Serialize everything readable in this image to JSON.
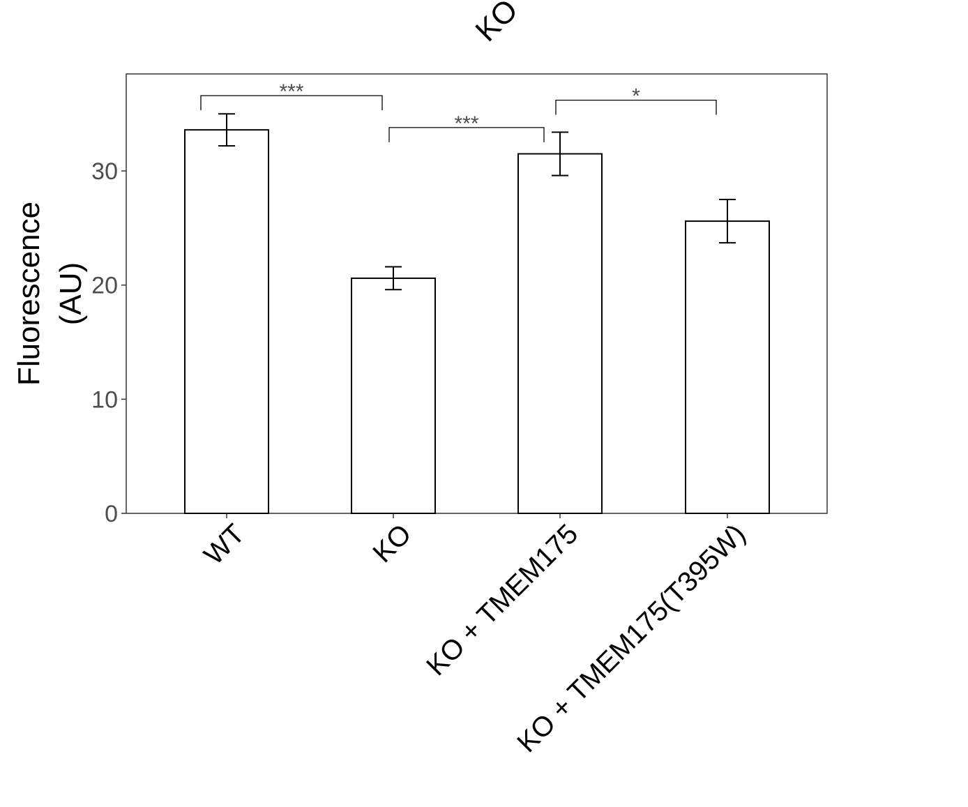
{
  "chart_data": {
    "type": "bar",
    "title": "KO",
    "xlabel": "",
    "ylabel_lines": [
      "Fluorescence",
      "(AU)"
    ],
    "categories": [
      "WT",
      "KO",
      "KO + TMEM175",
      "KO + TMEM175(T395W)"
    ],
    "values": [
      33.6,
      20.6,
      31.5,
      25.6
    ],
    "errors": [
      1.4,
      1.0,
      1.9,
      1.9
    ],
    "ylim": [
      0,
      38.5
    ],
    "yticks": [
      0,
      10,
      20,
      30
    ],
    "ytick_labels": [
      "0",
      "10",
      "20",
      "30"
    ],
    "grid": false,
    "significance": [
      {
        "from": 0,
        "to": 1,
        "label": "***",
        "y": 36.6
      },
      {
        "from": 1,
        "to": 2,
        "label": "***",
        "y": 33.8
      },
      {
        "from": 2,
        "to": 3,
        "label": "*",
        "y": 36.2
      }
    ],
    "colors": {
      "bar_fill": "#ffffff",
      "bar_stroke": "#000000",
      "axis": "#333333"
    }
  }
}
